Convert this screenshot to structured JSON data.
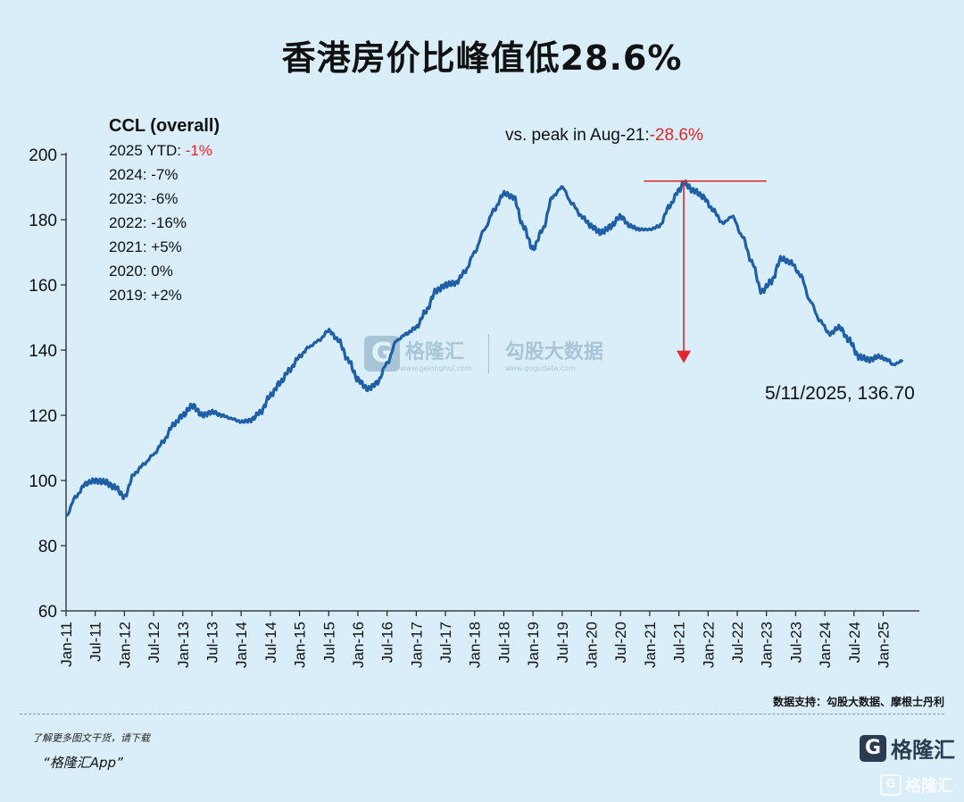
{
  "title": "香港房价比峰值低28.6%",
  "legend": {
    "header": "CCL (overall)",
    "rows": [
      {
        "label": "2025 YTD: ",
        "value": "-1%",
        "highlight": true
      },
      {
        "label": "2024: ",
        "value": "-7%",
        "highlight": false
      },
      {
        "label": "2023: ",
        "value": "-6%",
        "highlight": false
      },
      {
        "label": "2022: ",
        "value": "-16%",
        "highlight": false
      },
      {
        "label": "2021: ",
        "value": "+5%",
        "highlight": false
      },
      {
        "label": "2020: ",
        "value": "0%",
        "highlight": false
      },
      {
        "label": "2019: ",
        "value": "+2%",
        "highlight": false
      }
    ]
  },
  "annotations": {
    "peak_prefix": "vs. peak in Aug-21:",
    "peak_value": "-28.6%",
    "last_point": "5/11/2025, 136.70"
  },
  "source": "数据支持：勾股大数据、摩根士丹利",
  "watermark": {
    "brand": "格隆汇",
    "brand_url": "www.gelonghui.com",
    "brand2": "勾股大数据",
    "brand2_url": "www.gogudata.com"
  },
  "footer": {
    "promo_line": "了解更多图文干货，请下载",
    "promo_app": "“格隆汇App”",
    "brand": "格隆汇",
    "corner_brand": "格隆汇"
  },
  "colors": {
    "line": "#1f5fa8",
    "annotation": "#e0262d",
    "background": "#d9eef8"
  },
  "icons": {
    "brand_logo": "g-logo-icon"
  },
  "chart_data": {
    "type": "line",
    "title": "香港房价比峰值低28.6%",
    "xlabel": "",
    "ylabel": "",
    "ylim": [
      60,
      200
    ],
    "yticks": [
      60,
      80,
      100,
      120,
      140,
      160,
      180,
      200
    ],
    "xticks": [
      "Jan-11",
      "Jul-11",
      "Jan-12",
      "Jul-12",
      "Jan-13",
      "Jul-13",
      "Jan-14",
      "Jul-14",
      "Jan-15",
      "Jul-15",
      "Jan-16",
      "Jul-16",
      "Jan-17",
      "Jul-17",
      "Jan-18",
      "Jul-18",
      "Jan-19",
      "Jul-19",
      "Jan-20",
      "Jul-20",
      "Jan-21",
      "Jul-21",
      "Jan-22",
      "Jul-22",
      "Jan-23",
      "Jul-23",
      "Jan-24",
      "Jul-24",
      "Jan-25"
    ],
    "grid": false,
    "legend": "none",
    "peak": {
      "date": "2021-08",
      "value": 191.3
    },
    "series": [
      {
        "name": "CCL (overall)",
        "points": [
          [
            "2011-01",
            89
          ],
          [
            "2011-03",
            95
          ],
          [
            "2011-05",
            99
          ],
          [
            "2011-07",
            100
          ],
          [
            "2011-09",
            99.5
          ],
          [
            "2011-11",
            98
          ],
          [
            "2012-01",
            95
          ],
          [
            "2012-03",
            102
          ],
          [
            "2012-05",
            105
          ],
          [
            "2012-07",
            108
          ],
          [
            "2012-09",
            112
          ],
          [
            "2012-11",
            117
          ],
          [
            "2013-01",
            120
          ],
          [
            "2013-03",
            123
          ],
          [
            "2013-05",
            120
          ],
          [
            "2013-07",
            121
          ],
          [
            "2013-09",
            120
          ],
          [
            "2013-11",
            119
          ],
          [
            "2014-01",
            118
          ],
          [
            "2014-03",
            118.5
          ],
          [
            "2014-05",
            121
          ],
          [
            "2014-07",
            126
          ],
          [
            "2014-09",
            130
          ],
          [
            "2014-11",
            134
          ],
          [
            "2015-01",
            138
          ],
          [
            "2015-03",
            141
          ],
          [
            "2015-05",
            143
          ],
          [
            "2015-07",
            146
          ],
          [
            "2015-09",
            143
          ],
          [
            "2015-11",
            137
          ],
          [
            "2016-01",
            131
          ],
          [
            "2016-03",
            128
          ],
          [
            "2016-05",
            130
          ],
          [
            "2016-07",
            136
          ],
          [
            "2016-09",
            143
          ],
          [
            "2016-11",
            145
          ],
          [
            "2017-01",
            147
          ],
          [
            "2017-03",
            152
          ],
          [
            "2017-05",
            158
          ],
          [
            "2017-07",
            160
          ],
          [
            "2017-09",
            160.5
          ],
          [
            "2017-11",
            164
          ],
          [
            "2018-01",
            170
          ],
          [
            "2018-03",
            177
          ],
          [
            "2018-05",
            183
          ],
          [
            "2018-07",
            188
          ],
          [
            "2018-09",
            187
          ],
          [
            "2018-11",
            178
          ],
          [
            "2019-01",
            171
          ],
          [
            "2019-03",
            177
          ],
          [
            "2019-05",
            187
          ],
          [
            "2019-07",
            190
          ],
          [
            "2019-09",
            185
          ],
          [
            "2019-11",
            181
          ],
          [
            "2020-01",
            178
          ],
          [
            "2020-03",
            176
          ],
          [
            "2020-05",
            178
          ],
          [
            "2020-07",
            181
          ],
          [
            "2020-09",
            178
          ],
          [
            "2020-11",
            177
          ],
          [
            "2021-01",
            177
          ],
          [
            "2021-03",
            178
          ],
          [
            "2021-05",
            184
          ],
          [
            "2021-07",
            189
          ],
          [
            "2021-08",
            191.3
          ],
          [
            "2021-10",
            189
          ],
          [
            "2021-12",
            187
          ],
          [
            "2022-02",
            183
          ],
          [
            "2022-04",
            179
          ],
          [
            "2022-06",
            181
          ],
          [
            "2022-08",
            175
          ],
          [
            "2022-10",
            167
          ],
          [
            "2022-12",
            158
          ],
          [
            "2023-02",
            161
          ],
          [
            "2023-04",
            168
          ],
          [
            "2023-06",
            167
          ],
          [
            "2023-08",
            163
          ],
          [
            "2023-10",
            155
          ],
          [
            "2023-12",
            149
          ],
          [
            "2024-02",
            145
          ],
          [
            "2024-04",
            147
          ],
          [
            "2024-06",
            143
          ],
          [
            "2024-08",
            138
          ],
          [
            "2024-10",
            137
          ],
          [
            "2024-12",
            138
          ],
          [
            "2025-02",
            137
          ],
          [
            "2025-03",
            135.5
          ],
          [
            "2025-05",
            136.7
          ]
        ]
      }
    ]
  }
}
